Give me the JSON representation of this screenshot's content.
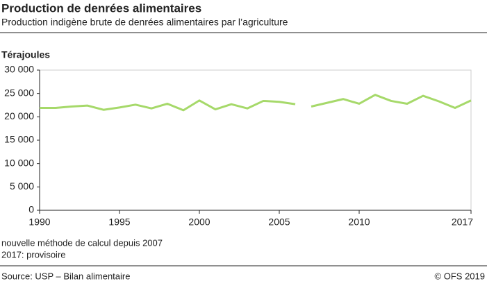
{
  "chart_data": {
    "type": "line",
    "title": "Production de denrées alimentaires",
    "subtitle": "Production indigène brute de denrées alimentaires par l’agriculture",
    "y_label": "Térajoules",
    "series": [
      {
        "color": "#a6d96a",
        "x": [
          1990,
          1991,
          1992,
          1993,
          1994,
          1995,
          1996,
          1997,
          1998,
          1999,
          2000,
          2001,
          2002,
          2003,
          2004,
          2005,
          2006
        ],
        "values": [
          21900,
          21900,
          22200,
          22400,
          21500,
          22000,
          22600,
          21800,
          22800,
          21400,
          23500,
          21600,
          22700,
          21800,
          23400,
          23200,
          22700
        ]
      },
      {
        "color": "#a6d96a",
        "x": [
          2007,
          2008,
          2009,
          2010,
          2011,
          2012,
          2013,
          2014,
          2015,
          2016,
          2017
        ],
        "values": [
          22200,
          23000,
          23800,
          22800,
          24700,
          23400,
          22800,
          24500,
          23300,
          21900,
          23500
        ]
      }
    ],
    "xlim": [
      1990,
      2017
    ],
    "xticks": [
      1990,
      1995,
      2000,
      2005,
      2010,
      2017
    ],
    "ylim": [
      0,
      30000
    ],
    "yticks": [
      0,
      {
        "value": 5000,
        "label": "5 000"
      },
      {
        "value": 10000,
        "label": "10 000"
      },
      {
        "value": 15000,
        "label": "15 000"
      },
      {
        "value": 20000,
        "label": "20 000"
      },
      {
        "value": 25000,
        "label": "25 000"
      },
      {
        "value": 30000,
        "label": "30 000"
      }
    ],
    "notes": [
      "nouvelle méthode de calcul depuis 2007",
      "2017: provisoire"
    ],
    "source": "Source: USP –  Bilan alimentaire",
    "copyright": "© OFS 2019"
  }
}
